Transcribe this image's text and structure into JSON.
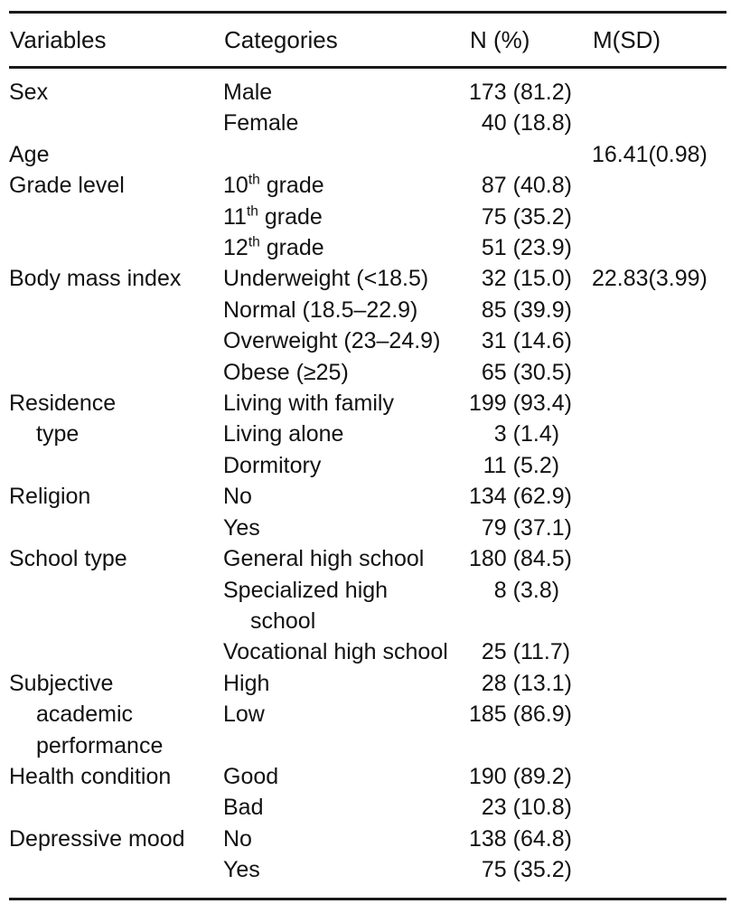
{
  "table": {
    "columns": [
      "Variables",
      "Categories",
      "N (%)",
      "M(SD)"
    ],
    "rows": [
      {
        "variable": "Sex",
        "category": "Male",
        "n": "173",
        "pct": "81.2"
      },
      {
        "category": "Female",
        "n": "40",
        "pct": "18.8"
      },
      {
        "variable": "Age",
        "msd": "16.41(0.98)"
      },
      {
        "variable": "Grade level",
        "category": "10^th^ grade",
        "n": "87",
        "pct": "40.8"
      },
      {
        "category": "11^th^ grade",
        "n": "75",
        "pct": "35.2"
      },
      {
        "category": "12^th^ grade",
        "n": "51",
        "pct": "23.9"
      },
      {
        "variable": "Body mass index",
        "category": "Underweight (<18.5)",
        "n": "32",
        "pct": "15.0",
        "msd": "22.83(3.99)"
      },
      {
        "category": "Normal (18.5–22.9)",
        "n": "85",
        "pct": "39.9"
      },
      {
        "category": "Overweight (23–24.9)",
        "n": "31",
        "pct": "14.6"
      },
      {
        "category": "Obese (≥25)",
        "n": "65",
        "pct": "30.5"
      },
      {
        "variable": "Residence",
        "category": "Living with family",
        "n": "199",
        "pct": "93.4"
      },
      {
        "variable": "type",
        "variable_indent": true,
        "category": "Living alone",
        "n": "3",
        "pct": "1.4"
      },
      {
        "category": "Dormitory",
        "n": "11",
        "pct": "5.2"
      },
      {
        "variable": "Religion",
        "category": "No",
        "n": "134",
        "pct": "62.9"
      },
      {
        "category": "Yes",
        "n": "79",
        "pct": "37.1"
      },
      {
        "variable": "School type",
        "category": "General high school",
        "n": "180",
        "pct": "84.5"
      },
      {
        "category": "Specialized high",
        "n": "8",
        "pct": "3.8"
      },
      {
        "category": "school",
        "category_indent": true
      },
      {
        "category": "Vocational high school",
        "n": "25",
        "pct": "11.7"
      },
      {
        "variable": "Subjective",
        "category": "High",
        "n": "28",
        "pct": "13.1"
      },
      {
        "variable": "academic",
        "variable_indent": true,
        "category": "Low",
        "n": "185",
        "pct": "86.9"
      },
      {
        "variable": "performance",
        "variable_indent": true
      },
      {
        "variable": "Health condition",
        "category": "Good",
        "n": "190",
        "pct": "89.2"
      },
      {
        "category": "Bad",
        "n": "23",
        "pct": "10.8"
      },
      {
        "variable": "Depressive mood",
        "category": "No",
        "n": "138",
        "pct": "64.8"
      },
      {
        "category": "Yes",
        "n": "75",
        "pct": "35.2"
      }
    ],
    "colors": {
      "text": "#121212",
      "rule": "#1a1a1a",
      "background": "#ffffff"
    }
  }
}
